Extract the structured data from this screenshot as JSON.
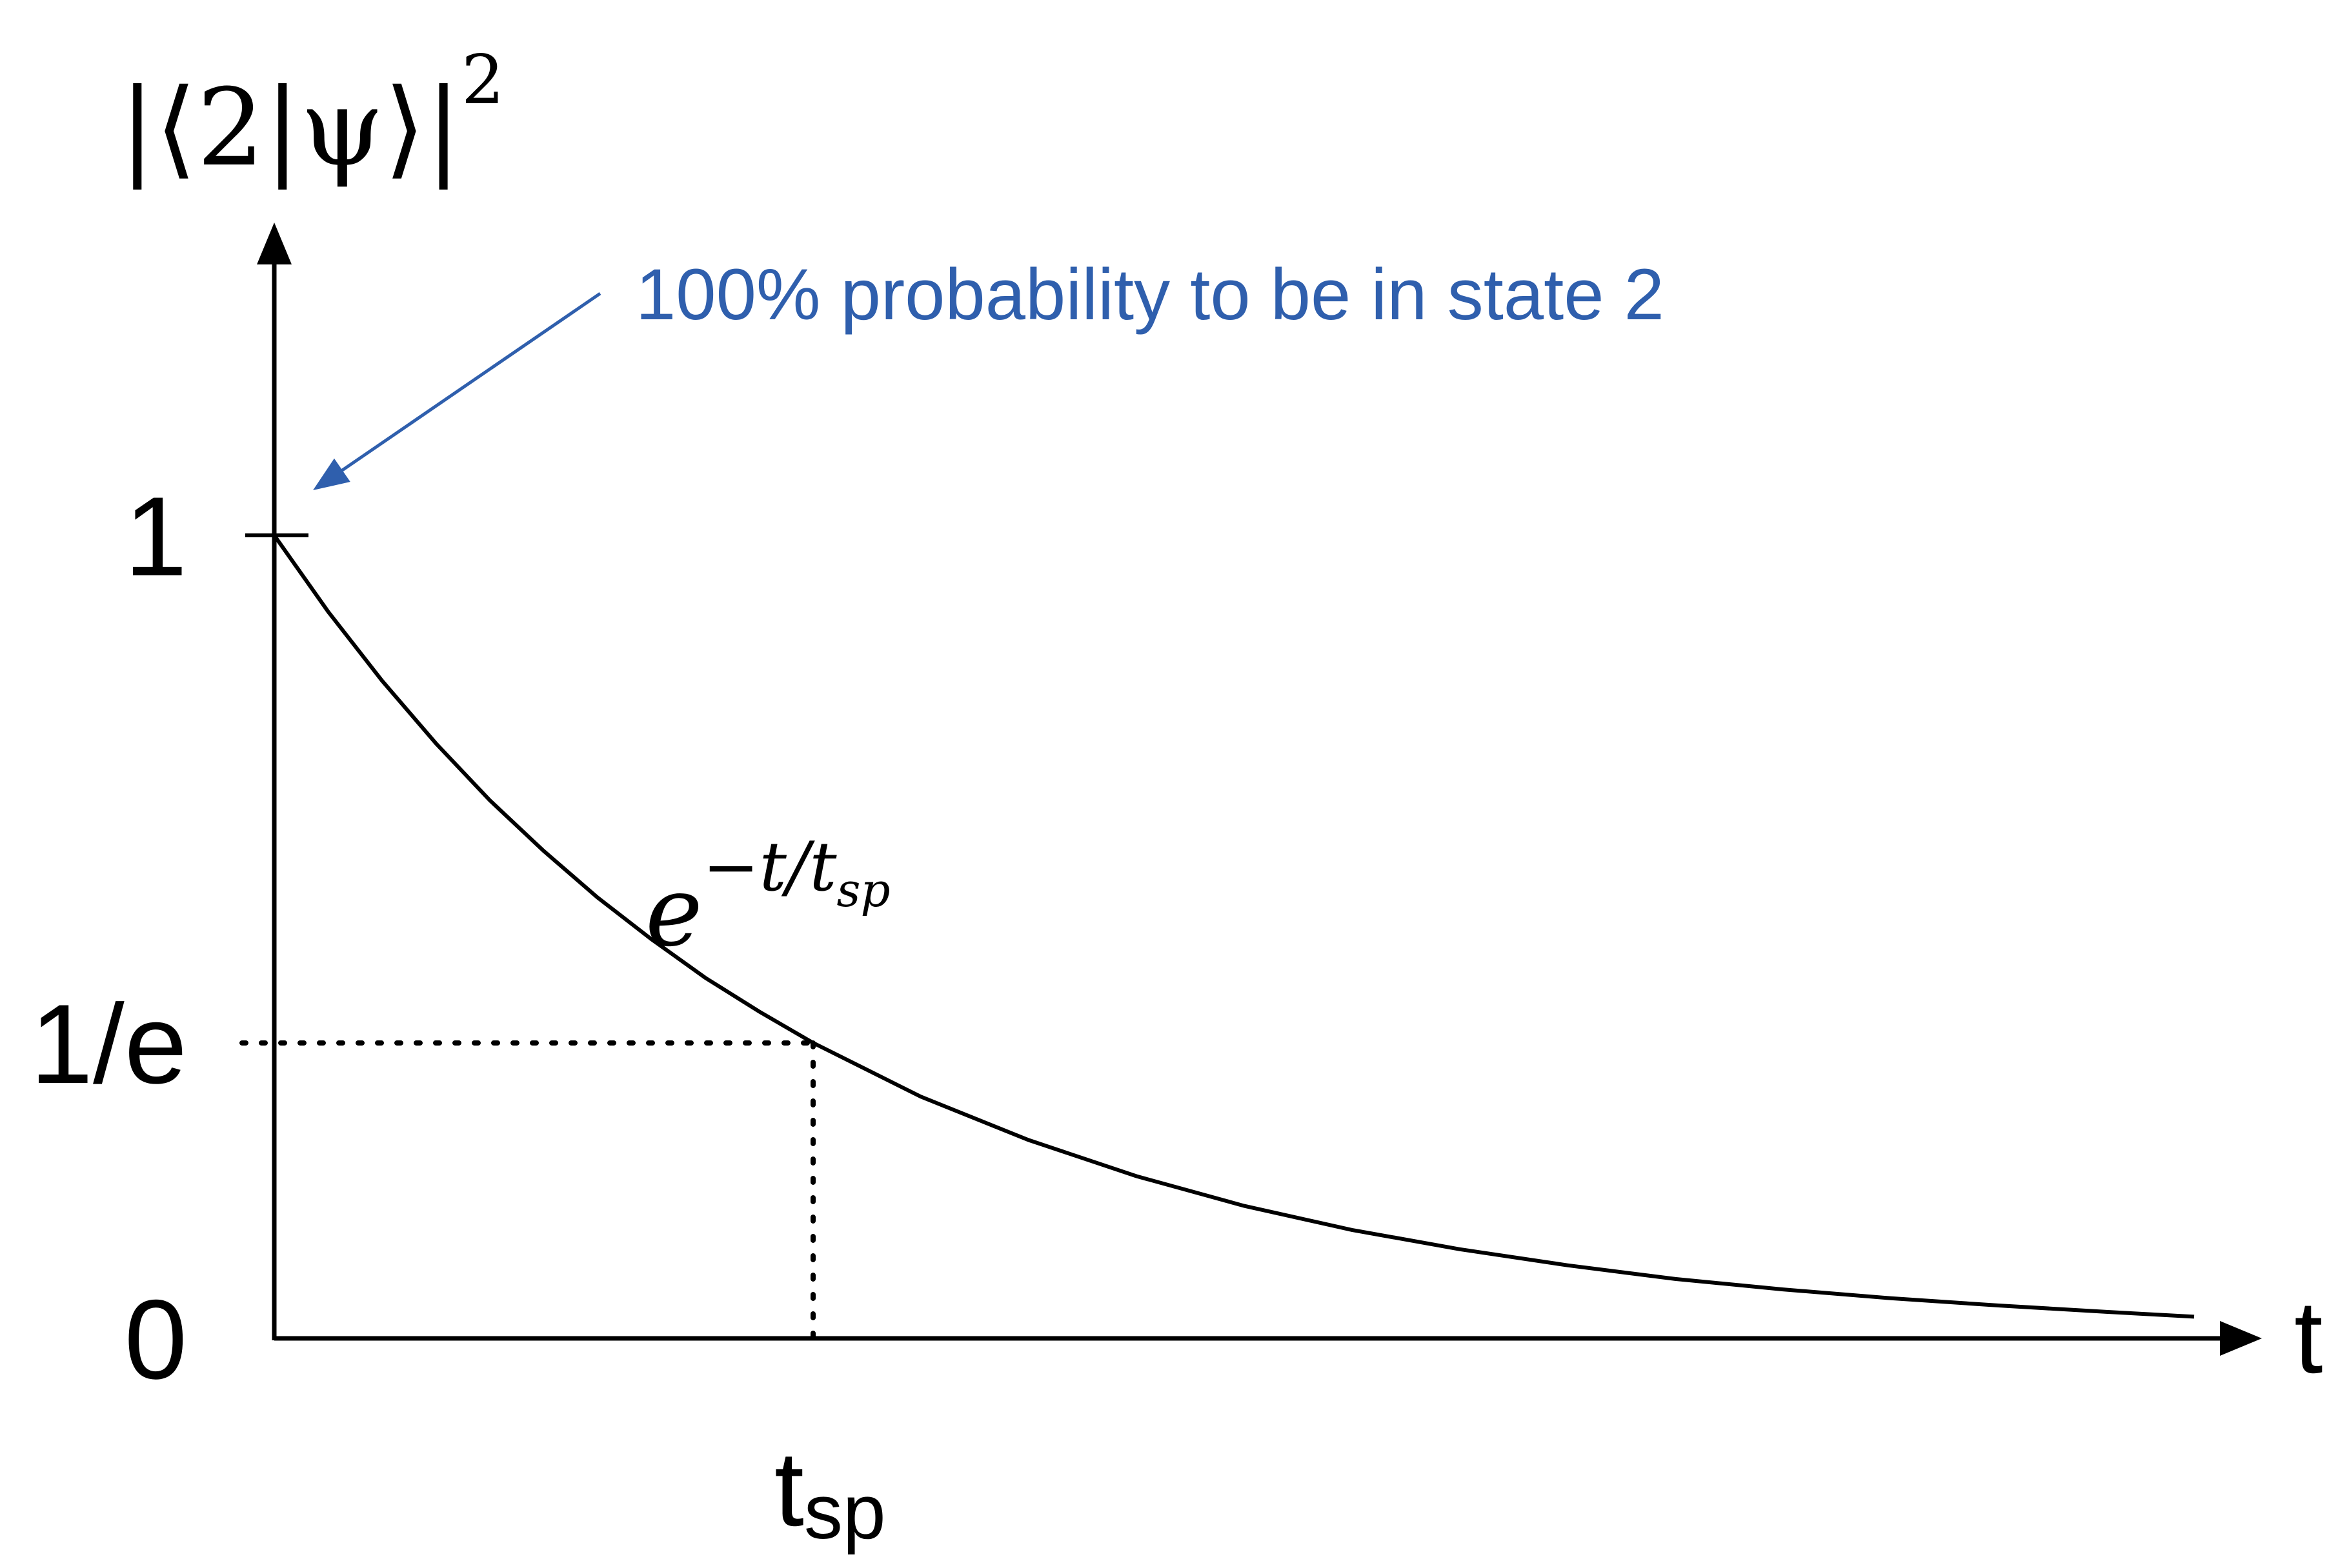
{
  "chart_data": {
    "type": "line",
    "title": "",
    "xlabel": "t",
    "ylabel": "|⟨2|ψ⟩|²",
    "ylabel_parts": {
      "base": "|⟨2|ψ⟩|",
      "sup": "2"
    },
    "xlim": [
      0,
      3.6
    ],
    "ylim": [
      0,
      1
    ],
    "grid": false,
    "legend": "none",
    "y_ticks": [
      {
        "value": 1,
        "label": "1"
      },
      {
        "value": 0.3679,
        "label": "1/e"
      },
      {
        "value": 0,
        "label": "0"
      }
    ],
    "x_ticks": [
      {
        "value": 1,
        "label": "t",
        "sub": "sp"
      }
    ],
    "series": [
      {
        "formula": "exp(-t)",
        "formula_label": {
          "base": "e",
          "sup": "−t/t",
          "sup_sub": "sp"
        },
        "x": [
          0,
          0.1,
          0.2,
          0.3,
          0.4,
          0.5,
          0.6,
          0.7,
          0.8,
          0.9,
          1.0,
          1.2,
          1.4,
          1.6,
          1.8,
          2.0,
          2.2,
          2.4,
          2.6,
          2.8,
          3.0,
          3.2,
          3.4,
          3.6
        ],
        "y": [
          1.0,
          0.905,
          0.819,
          0.741,
          0.67,
          0.607,
          0.549,
          0.497,
          0.449,
          0.407,
          0.368,
          0.301,
          0.247,
          0.202,
          0.165,
          0.135,
          0.111,
          0.091,
          0.074,
          0.061,
          0.05,
          0.041,
          0.033,
          0.027
        ],
        "color": "#000000"
      }
    ],
    "reference_lines": [
      {
        "style": "dotted",
        "from": [
          0,
          0.3679
        ],
        "to": [
          1,
          0.3679
        ]
      },
      {
        "style": "dotted",
        "from": [
          1,
          0.3679
        ],
        "to": [
          1,
          0
        ]
      }
    ],
    "annotations": [
      {
        "text": "100% probability to be in state 2",
        "points_to": [
          0,
          1
        ],
        "color": "#2f5fad"
      }
    ]
  }
}
